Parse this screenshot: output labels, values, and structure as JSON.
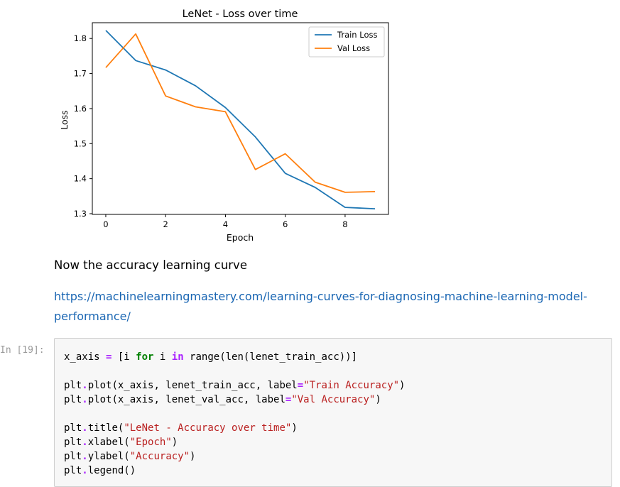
{
  "chart_data": {
    "type": "line",
    "title": "LeNet - Loss over time",
    "xlabel": "Epoch",
    "ylabel": "Loss",
    "x": [
      0,
      1,
      2,
      3,
      4,
      5,
      6,
      7,
      8,
      9
    ],
    "xlim": [
      -0.45,
      9.45
    ],
    "ylim": [
      1.298,
      1.845
    ],
    "xticks": [
      0,
      2,
      4,
      6,
      8
    ],
    "xtick_labels": [
      "0",
      "2",
      "4",
      "6",
      "8"
    ],
    "yticks": [
      1.3,
      1.4,
      1.5,
      1.6,
      1.7,
      1.8
    ],
    "ytick_labels": [
      "1.3",
      "1.4",
      "1.5",
      "1.6",
      "1.7",
      "1.8"
    ],
    "legend_position": "top-right",
    "grid": false,
    "series": [
      {
        "name": "Train Loss",
        "color": "#1f77b4",
        "values": [
          1.823,
          1.737,
          1.71,
          1.665,
          1.603,
          1.519,
          1.415,
          1.375,
          1.318,
          1.314
        ]
      },
      {
        "name": "Val Loss",
        "color": "#ff7f0e",
        "values": [
          1.717,
          1.813,
          1.636,
          1.605,
          1.591,
          1.426,
          1.471,
          1.39,
          1.361,
          1.363
        ]
      }
    ]
  },
  "markdown": {
    "heading": "Now the accuracy learning curve",
    "link": "https://machinelearningmastery.com/learning-curves-for-diagnosing-machine-learning-model-performance/"
  },
  "cell": {
    "prompt": "In [19]:"
  }
}
